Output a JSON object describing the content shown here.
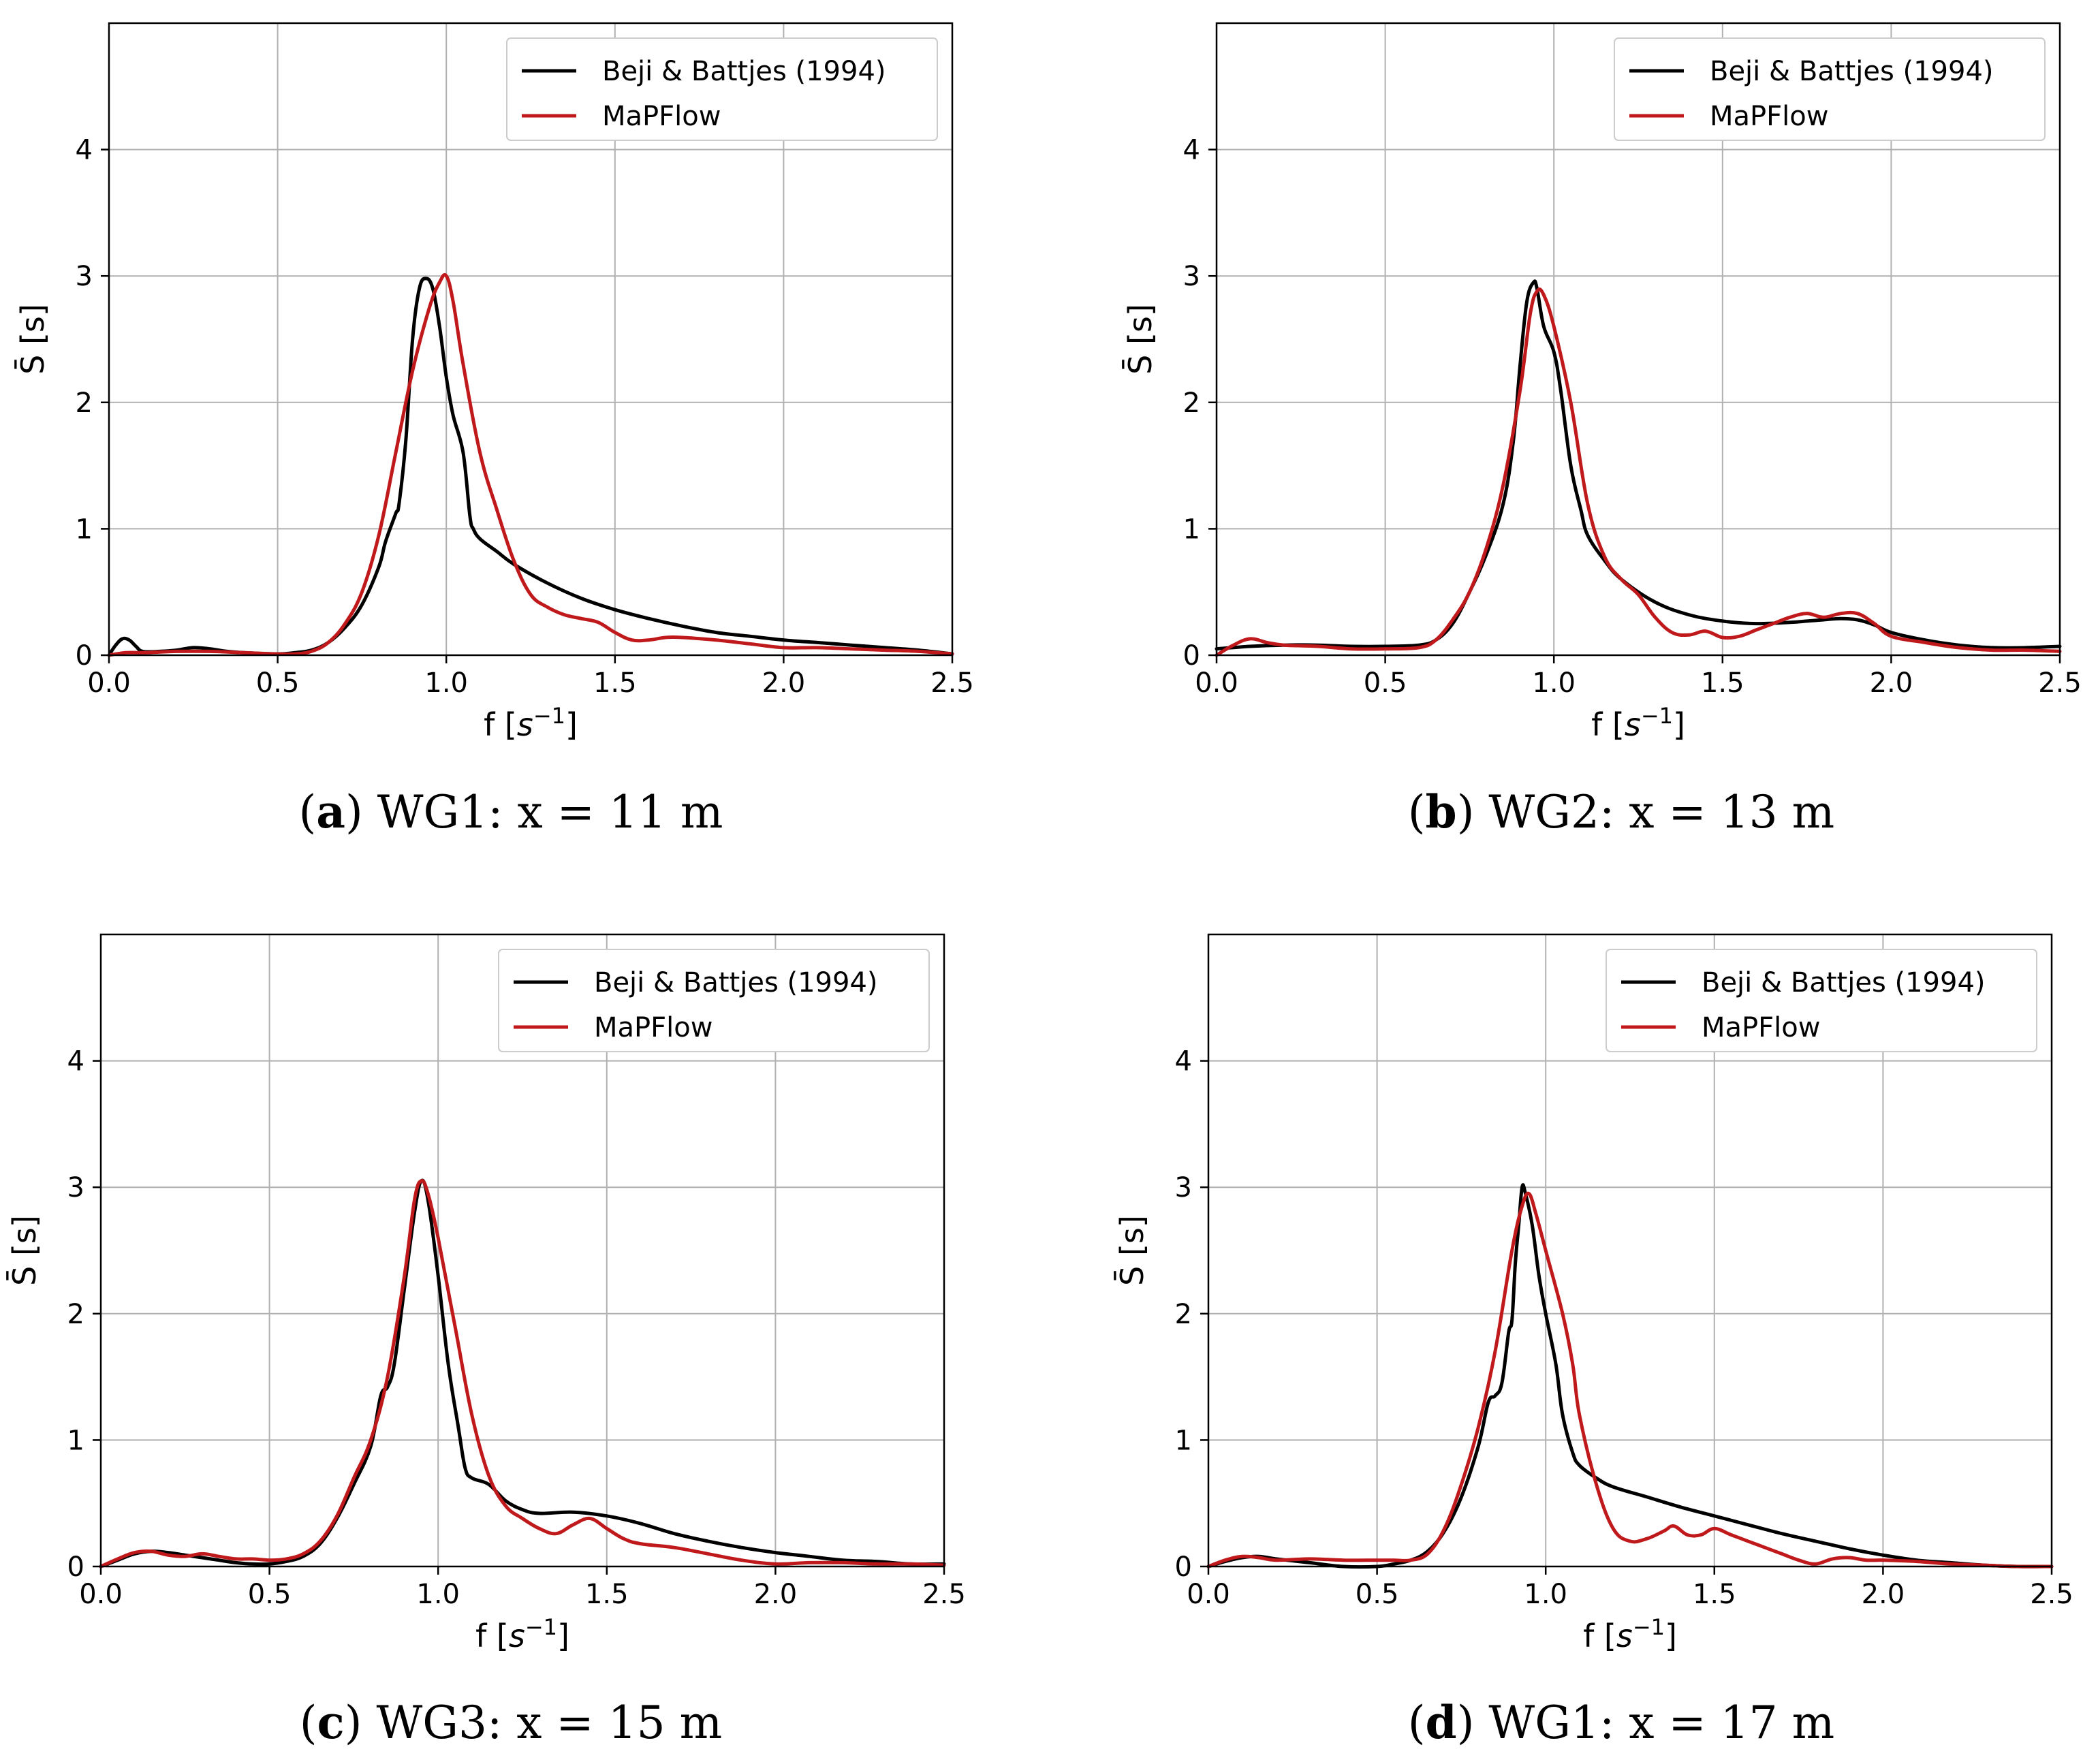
{
  "colors": {
    "reference": "#000000",
    "simulation": "#c0191c"
  },
  "chart_data": [
    {
      "type": "line",
      "panel_letter": "a",
      "caption_rest": "WG1: x = 11 m",
      "xlabel": "f",
      "xlabel_unit": "s",
      "xlabel_exp": "−1",
      "ylabel": "S̄ [s]",
      "xlim": [
        0,
        2.5
      ],
      "ylim": [
        0,
        5
      ],
      "xticks": [
        0.0,
        0.5,
        1.0,
        1.5,
        2.0,
        2.5
      ],
      "xtick_labels": [
        "0.0",
        "0.5",
        "1.0",
        "1.5",
        "2.0",
        "2.5"
      ],
      "yticks": [
        0,
        1,
        2,
        3,
        4
      ],
      "ytick_labels": [
        "0",
        "1",
        "2",
        "3",
        "4"
      ],
      "grid": true,
      "legend_position": "top-right",
      "series": [
        {
          "name": "Beji & Battjes (1994)",
          "color_key": "reference",
          "x": [
            0.0,
            0.02,
            0.04,
            0.06,
            0.08,
            0.1,
            0.15,
            0.2,
            0.25,
            0.3,
            0.35,
            0.4,
            0.5,
            0.55,
            0.6,
            0.65,
            0.7,
            0.75,
            0.8,
            0.82,
            0.85,
            0.86,
            0.88,
            0.9,
            0.92,
            0.94,
            0.96,
            0.98,
            1.0,
            1.02,
            1.05,
            1.07,
            1.08,
            1.1,
            1.15,
            1.2,
            1.3,
            1.4,
            1.5,
            1.6,
            1.7,
            1.8,
            1.9,
            2.0,
            2.1,
            2.2,
            2.3,
            2.4,
            2.5
          ],
          "y": [
            0.0,
            0.08,
            0.13,
            0.12,
            0.07,
            0.03,
            0.03,
            0.04,
            0.06,
            0.05,
            0.03,
            0.02,
            0.01,
            0.02,
            0.04,
            0.1,
            0.22,
            0.4,
            0.7,
            0.9,
            1.12,
            1.2,
            1.7,
            2.5,
            2.9,
            2.98,
            2.9,
            2.6,
            2.2,
            1.9,
            1.6,
            1.1,
            1.0,
            0.92,
            0.82,
            0.72,
            0.57,
            0.45,
            0.36,
            0.29,
            0.23,
            0.18,
            0.15,
            0.12,
            0.1,
            0.08,
            0.06,
            0.04,
            0.01
          ]
        },
        {
          "name": "MaPFlow",
          "color_key": "simulation",
          "x": [
            0.0,
            0.05,
            0.1,
            0.2,
            0.3,
            0.4,
            0.5,
            0.55,
            0.6,
            0.65,
            0.7,
            0.75,
            0.8,
            0.85,
            0.9,
            0.95,
            0.98,
            1.0,
            1.02,
            1.05,
            1.1,
            1.15,
            1.2,
            1.25,
            1.3,
            1.35,
            1.4,
            1.45,
            1.5,
            1.55,
            1.6,
            1.65,
            1.7,
            1.8,
            1.9,
            2.0,
            2.1,
            2.2,
            2.3,
            2.4,
            2.5
          ],
          "y": [
            0.0,
            0.02,
            0.02,
            0.03,
            0.03,
            0.02,
            0.01,
            0.01,
            0.03,
            0.1,
            0.25,
            0.5,
            0.95,
            1.6,
            2.25,
            2.75,
            2.95,
            3.0,
            2.8,
            2.3,
            1.6,
            1.15,
            0.75,
            0.48,
            0.38,
            0.32,
            0.29,
            0.26,
            0.18,
            0.12,
            0.12,
            0.14,
            0.14,
            0.12,
            0.09,
            0.06,
            0.06,
            0.05,
            0.04,
            0.03,
            0.01
          ]
        }
      ]
    },
    {
      "type": "line",
      "panel_letter": "b",
      "caption_rest": "WG2: x = 13 m",
      "xlabel": "f",
      "xlabel_unit": "s",
      "xlabel_exp": "−1",
      "ylabel": "S̄ [s]",
      "xlim": [
        0,
        2.5
      ],
      "ylim": [
        0,
        5
      ],
      "xticks": [
        0.0,
        0.5,
        1.0,
        1.5,
        2.0,
        2.5
      ],
      "xtick_labels": [
        "0.0",
        "0.5",
        "1.0",
        "1.5",
        "2.0",
        "2.5"
      ],
      "yticks": [
        0,
        1,
        2,
        3,
        4
      ],
      "ytick_labels": [
        "0",
        "1",
        "2",
        "3",
        "4"
      ],
      "grid": true,
      "legend_position": "top-right",
      "series": [
        {
          "name": "Beji & Battjes (1994)",
          "color_key": "reference",
          "x": [
            0.0,
            0.1,
            0.2,
            0.3,
            0.4,
            0.5,
            0.6,
            0.65,
            0.7,
            0.75,
            0.8,
            0.85,
            0.88,
            0.9,
            0.92,
            0.94,
            0.95,
            0.97,
            1.0,
            1.02,
            1.05,
            1.08,
            1.1,
            1.15,
            1.2,
            1.3,
            1.4,
            1.5,
            1.6,
            1.7,
            1.75,
            1.8,
            1.85,
            1.9,
            1.95,
            2.0,
            2.1,
            2.2,
            2.3,
            2.4,
            2.5
          ],
          "y": [
            0.05,
            0.07,
            0.08,
            0.08,
            0.07,
            0.07,
            0.08,
            0.12,
            0.25,
            0.5,
            0.8,
            1.2,
            1.7,
            2.3,
            2.8,
            2.95,
            2.9,
            2.6,
            2.4,
            2.1,
            1.5,
            1.15,
            0.95,
            0.75,
            0.6,
            0.42,
            0.32,
            0.27,
            0.25,
            0.26,
            0.27,
            0.28,
            0.29,
            0.28,
            0.24,
            0.18,
            0.12,
            0.08,
            0.06,
            0.06,
            0.07
          ]
        },
        {
          "name": "MaPFlow",
          "color_key": "simulation",
          "x": [
            0.0,
            0.05,
            0.1,
            0.15,
            0.2,
            0.3,
            0.4,
            0.5,
            0.6,
            0.65,
            0.7,
            0.75,
            0.8,
            0.85,
            0.9,
            0.93,
            0.95,
            0.97,
            1.0,
            1.05,
            1.1,
            1.15,
            1.2,
            1.25,
            1.3,
            1.35,
            1.4,
            1.45,
            1.5,
            1.55,
            1.6,
            1.65,
            1.7,
            1.75,
            1.8,
            1.85,
            1.9,
            1.95,
            2.0,
            2.1,
            2.2,
            2.3,
            2.4,
            2.5
          ],
          "y": [
            0.0,
            0.08,
            0.13,
            0.1,
            0.08,
            0.07,
            0.05,
            0.05,
            0.06,
            0.12,
            0.28,
            0.5,
            0.85,
            1.35,
            2.1,
            2.7,
            2.88,
            2.85,
            2.6,
            2.0,
            1.2,
            0.78,
            0.6,
            0.48,
            0.3,
            0.18,
            0.16,
            0.19,
            0.14,
            0.15,
            0.2,
            0.25,
            0.3,
            0.33,
            0.3,
            0.33,
            0.33,
            0.25,
            0.15,
            0.1,
            0.06,
            0.04,
            0.04,
            0.03
          ]
        }
      ]
    },
    {
      "type": "line",
      "panel_letter": "c",
      "caption_rest": "WG3: x = 15 m",
      "xlabel": "f",
      "xlabel_unit": "s",
      "xlabel_exp": "−1",
      "ylabel": "S̄ [s]",
      "xlim": [
        0,
        2.5
      ],
      "ylim": [
        0,
        5
      ],
      "xticks": [
        0.0,
        0.5,
        1.0,
        1.5,
        2.0,
        2.5
      ],
      "xtick_labels": [
        "0.0",
        "0.5",
        "1.0",
        "1.5",
        "2.0",
        "2.5"
      ],
      "yticks": [
        0,
        1,
        2,
        3,
        4
      ],
      "ytick_labels": [
        "0",
        "1",
        "2",
        "3",
        "4"
      ],
      "grid": true,
      "legend_position": "top-right",
      "series": [
        {
          "name": "Beji & Battjes (1994)",
          "color_key": "reference",
          "x": [
            0.0,
            0.05,
            0.1,
            0.15,
            0.2,
            0.25,
            0.3,
            0.35,
            0.4,
            0.45,
            0.5,
            0.55,
            0.6,
            0.65,
            0.7,
            0.75,
            0.8,
            0.83,
            0.85,
            0.87,
            0.9,
            0.93,
            0.95,
            0.97,
            1.0,
            1.03,
            1.06,
            1.08,
            1.1,
            1.15,
            1.2,
            1.25,
            1.3,
            1.4,
            1.5,
            1.6,
            1.7,
            1.8,
            1.9,
            2.0,
            2.1,
            2.2,
            2.3,
            2.4,
            2.5
          ],
          "y": [
            0.0,
            0.05,
            0.1,
            0.12,
            0.11,
            0.09,
            0.07,
            0.05,
            0.03,
            0.02,
            0.02,
            0.04,
            0.08,
            0.18,
            0.38,
            0.65,
            0.95,
            1.35,
            1.42,
            1.6,
            2.2,
            2.8,
            3.05,
            2.9,
            2.3,
            1.6,
            1.1,
            0.78,
            0.7,
            0.65,
            0.52,
            0.45,
            0.42,
            0.43,
            0.4,
            0.34,
            0.26,
            0.2,
            0.15,
            0.11,
            0.08,
            0.05,
            0.04,
            0.02,
            0.02
          ]
        },
        {
          "name": "MaPFlow",
          "color_key": "simulation",
          "x": [
            0.0,
            0.05,
            0.1,
            0.15,
            0.2,
            0.25,
            0.3,
            0.35,
            0.4,
            0.45,
            0.5,
            0.55,
            0.6,
            0.65,
            0.7,
            0.75,
            0.8,
            0.85,
            0.9,
            0.93,
            0.95,
            0.97,
            1.0,
            1.05,
            1.1,
            1.15,
            1.2,
            1.25,
            1.3,
            1.35,
            1.4,
            1.45,
            1.5,
            1.55,
            1.6,
            1.7,
            1.8,
            1.9,
            2.0,
            2.1,
            2.2,
            2.3,
            2.4,
            2.5
          ],
          "y": [
            0.0,
            0.06,
            0.11,
            0.12,
            0.09,
            0.08,
            0.1,
            0.08,
            0.06,
            0.06,
            0.05,
            0.06,
            0.1,
            0.2,
            0.4,
            0.7,
            1.0,
            1.5,
            2.3,
            2.9,
            3.05,
            2.95,
            2.6,
            1.9,
            1.2,
            0.72,
            0.48,
            0.38,
            0.3,
            0.26,
            0.33,
            0.38,
            0.3,
            0.22,
            0.18,
            0.15,
            0.1,
            0.05,
            0.02,
            0.03,
            0.03,
            0.02,
            0.02,
            0.01
          ]
        }
      ]
    },
    {
      "type": "line",
      "panel_letter": "d",
      "caption_rest": "WG1: x = 17 m",
      "xlabel": "f",
      "xlabel_unit": "s",
      "xlabel_exp": "−1",
      "ylabel": "S̄ [s]",
      "xlim": [
        0,
        2.5
      ],
      "ylim": [
        0,
        5
      ],
      "xticks": [
        0.0,
        0.5,
        1.0,
        1.5,
        2.0,
        2.5
      ],
      "xtick_labels": [
        "0.0",
        "0.5",
        "1.0",
        "1.5",
        "2.0",
        "2.5"
      ],
      "yticks": [
        0,
        1,
        2,
        3,
        4
      ],
      "ytick_labels": [
        "0",
        "1",
        "2",
        "3",
        "4"
      ],
      "grid": true,
      "legend_position": "top-right",
      "series": [
        {
          "name": "Beji & Battjes (1994)",
          "color_key": "reference",
          "x": [
            0.0,
            0.05,
            0.1,
            0.15,
            0.2,
            0.3,
            0.4,
            0.5,
            0.55,
            0.6,
            0.65,
            0.7,
            0.75,
            0.8,
            0.83,
            0.85,
            0.87,
            0.89,
            0.9,
            0.91,
            0.92,
            0.93,
            0.94,
            0.96,
            0.98,
            1.0,
            1.03,
            1.05,
            1.08,
            1.1,
            1.15,
            1.2,
            1.3,
            1.4,
            1.5,
            1.6,
            1.7,
            1.8,
            1.9,
            2.0,
            2.1,
            2.2,
            2.3,
            2.4,
            2.5
          ],
          "y": [
            0.0,
            0.04,
            0.07,
            0.08,
            0.06,
            0.03,
            0.0,
            0.0,
            0.02,
            0.05,
            0.12,
            0.28,
            0.55,
            0.95,
            1.3,
            1.35,
            1.45,
            1.85,
            1.95,
            2.4,
            2.7,
            3.0,
            2.95,
            2.7,
            2.3,
            2.0,
            1.6,
            1.2,
            0.9,
            0.8,
            0.7,
            0.63,
            0.55,
            0.47,
            0.4,
            0.33,
            0.26,
            0.2,
            0.14,
            0.09,
            0.05,
            0.03,
            0.01,
            0.0,
            0.0
          ]
        },
        {
          "name": "MaPFlow",
          "color_key": "simulation",
          "x": [
            0.0,
            0.05,
            0.1,
            0.15,
            0.2,
            0.3,
            0.4,
            0.5,
            0.55,
            0.6,
            0.65,
            0.7,
            0.75,
            0.8,
            0.85,
            0.9,
            0.93,
            0.95,
            0.97,
            1.0,
            1.05,
            1.08,
            1.1,
            1.15,
            1.2,
            1.25,
            1.3,
            1.35,
            1.38,
            1.42,
            1.46,
            1.5,
            1.55,
            1.6,
            1.65,
            1.7,
            1.75,
            1.8,
            1.85,
            1.9,
            1.95,
            2.0,
            2.1,
            2.2,
            2.3,
            2.4,
            2.5
          ],
          "y": [
            0.0,
            0.05,
            0.08,
            0.07,
            0.05,
            0.06,
            0.05,
            0.05,
            0.05,
            0.05,
            0.1,
            0.3,
            0.65,
            1.1,
            1.7,
            2.5,
            2.85,
            2.95,
            2.8,
            2.5,
            2.0,
            1.6,
            1.2,
            0.65,
            0.3,
            0.2,
            0.22,
            0.28,
            0.32,
            0.25,
            0.25,
            0.3,
            0.25,
            0.2,
            0.15,
            0.1,
            0.05,
            0.02,
            0.06,
            0.07,
            0.05,
            0.05,
            0.04,
            0.02,
            0.01,
            0.0,
            0.0
          ]
        }
      ]
    }
  ]
}
